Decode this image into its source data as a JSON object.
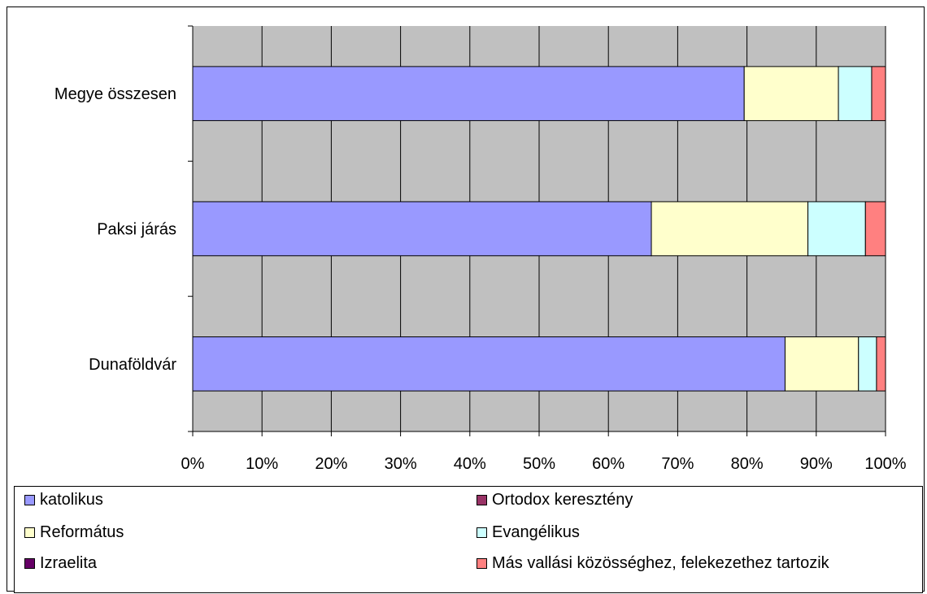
{
  "chart_data": {
    "type": "bar",
    "orientation": "horizontal",
    "stacked": "percent",
    "categories": [
      "Megye összesen",
      "Paksi járás",
      "Dunaföldvár"
    ],
    "series": [
      {
        "name": "katolikus",
        "color": "#9999FF",
        "values": [
          79.6,
          66.2,
          85.5
        ]
      },
      {
        "name": "Ortodox keresztény",
        "color": "#993366",
        "values": [
          0.0,
          0.0,
          0.0
        ]
      },
      {
        "name": "Református",
        "color": "#FFFFCC",
        "values": [
          13.6,
          22.6,
          10.6
        ]
      },
      {
        "name": "Evangélikus",
        "color": "#CCFFFF",
        "values": [
          4.8,
          8.3,
          2.6
        ]
      },
      {
        "name": "Izraelita",
        "color": "#660066",
        "values": [
          0.0,
          0.0,
          0.0
        ]
      },
      {
        "name": "Más vallási közösséghez, felekezethez tartozik",
        "color": "#FF8080",
        "values": [
          2.0,
          2.9,
          1.3
        ]
      }
    ],
    "x_ticks": [
      "0%",
      "10%",
      "20%",
      "30%",
      "40%",
      "50%",
      "60%",
      "70%",
      "80%",
      "90%",
      "100%"
    ],
    "xlim": [
      0,
      100
    ],
    "grid": true,
    "plot_background": "#C0C0C0",
    "legend_position": "bottom"
  }
}
